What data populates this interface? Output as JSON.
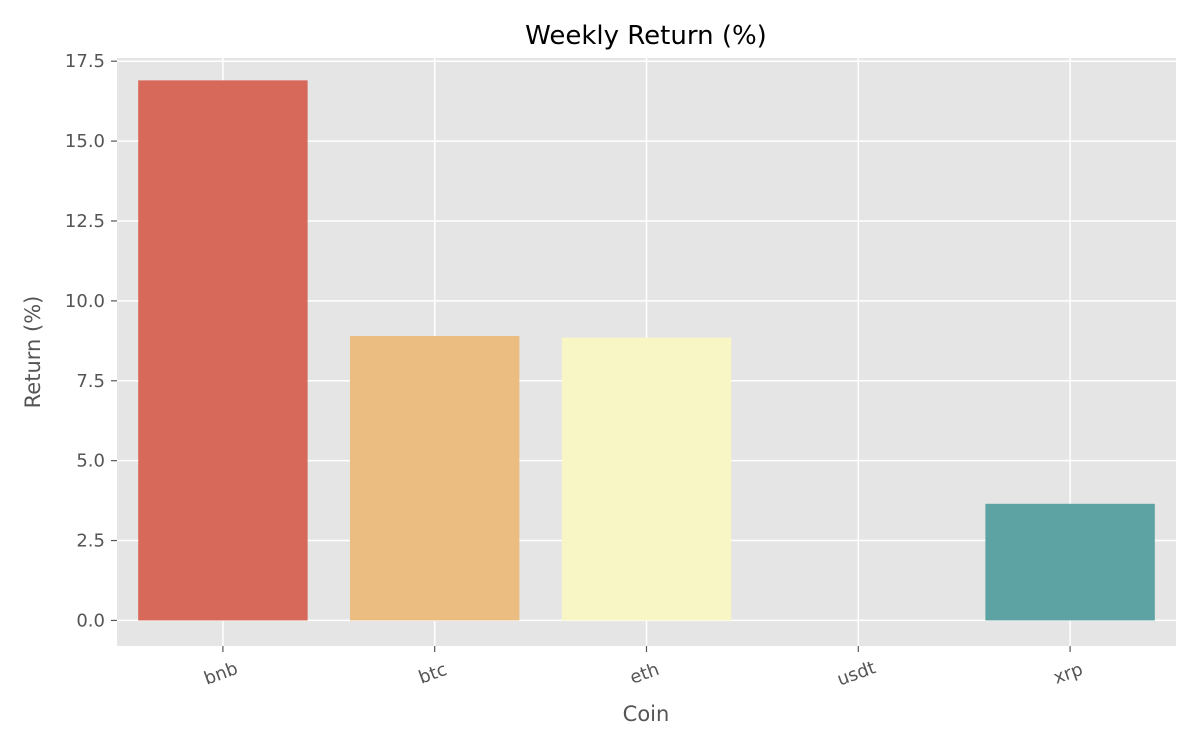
{
  "chart_data": {
    "type": "bar",
    "title": "Weekly Return (%)",
    "xlabel": "Coin",
    "ylabel": "Return (%)",
    "categories": [
      "bnb",
      "btc",
      "eth",
      "usdt",
      "xrp"
    ],
    "values": [
      16.9,
      8.9,
      8.85,
      0.0,
      3.65
    ],
    "colors": [
      "#d6695a",
      "#ebbd80",
      "#f7f6c4",
      "#9fd4b4",
      "#5ea3a3"
    ],
    "ylim": [
      -0.8,
      17.6
    ],
    "yticks": [
      0,
      2.5,
      5,
      7.5,
      10,
      12.5,
      15,
      17.5
    ],
    "ytick_labels": [
      "0.0",
      "2.5",
      "5.0",
      "7.5",
      "10.0",
      "12.5",
      "15.0",
      "17.5"
    ],
    "grid": true,
    "style": {
      "background": "#e5e5e5",
      "grid_color": "#ffffff",
      "text_color": "#555555"
    }
  }
}
